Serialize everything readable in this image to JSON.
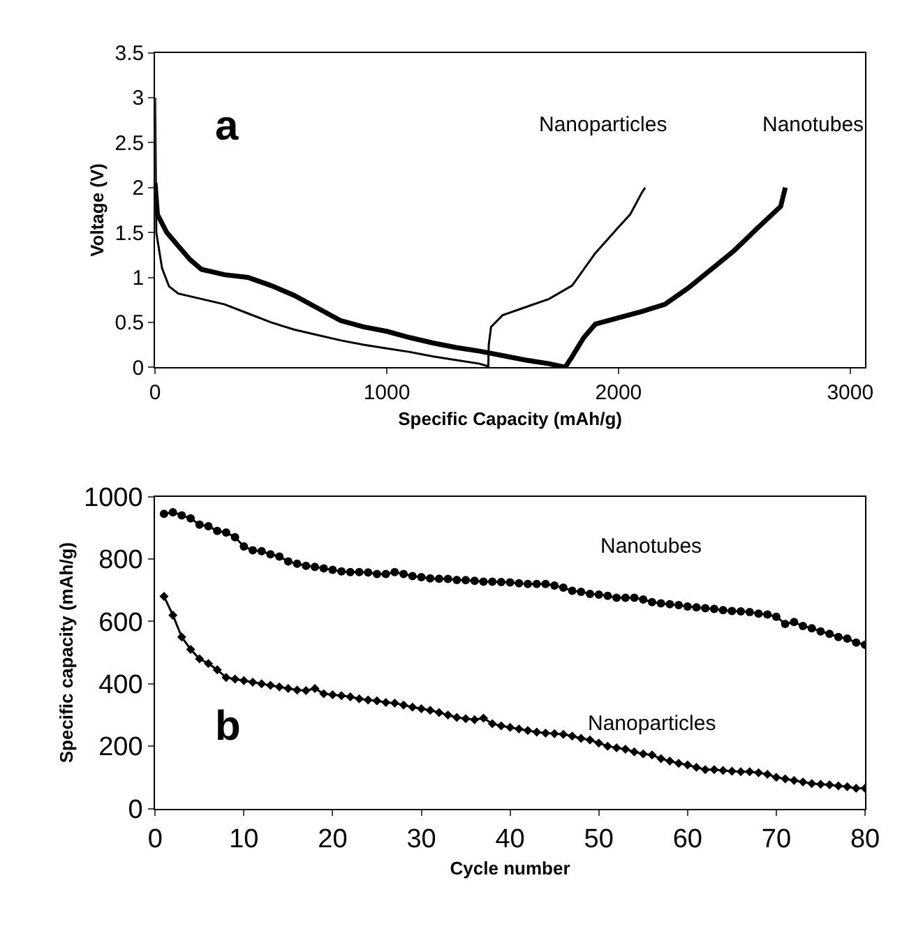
{
  "chart_data": [
    {
      "type": "line",
      "xlabel": "Specific Capacity (mAh/g)",
      "ylabel": "Voltage (V)",
      "annotations": [
        "a"
      ],
      "xlim": [
        0,
        3064
      ],
      "xticks": [
        0,
        1000,
        2000,
        3000
      ],
      "ylim": [
        0,
        3.5
      ],
      "yticks": [
        0,
        0.5,
        1,
        1.5,
        2,
        2.5,
        3,
        3.5
      ],
      "marker": "none",
      "series": [
        {
          "name": "Nanoparticles",
          "color": "#000000",
          "x": [
            0,
            5,
            30,
            60,
            100,
            200,
            300,
            400,
            500,
            600,
            700,
            800,
            900,
            1000,
            1100,
            1200,
            1300,
            1400,
            1438,
            1440,
            1450,
            1500,
            1600,
            1700,
            1800,
            1900,
            2000,
            2050,
            2100,
            2115
          ],
          "values": [
            3.0,
            1.5,
            1.1,
            0.9,
            0.82,
            0.76,
            0.7,
            0.6,
            0.5,
            0.42,
            0.36,
            0.3,
            0.25,
            0.21,
            0.17,
            0.12,
            0.08,
            0.04,
            0.01,
            0.25,
            0.45,
            0.58,
            0.67,
            0.76,
            0.91,
            1.27,
            1.56,
            1.7,
            1.94,
            2.0
          ]
        },
        {
          "name": "Nanotubes",
          "color": "#000000",
          "x": [
            0,
            10,
            50,
            100,
            150,
            200,
            300,
            400,
            500,
            600,
            700,
            800,
            900,
            1000,
            1100,
            1200,
            1300,
            1400,
            1500,
            1600,
            1700,
            1770,
            1780,
            1800,
            1850,
            1900,
            2000,
            2100,
            2200,
            2300,
            2400,
            2500,
            2600,
            2700,
            2720
          ],
          "values": [
            2.05,
            1.7,
            1.5,
            1.35,
            1.2,
            1.09,
            1.03,
            1.0,
            0.91,
            0.8,
            0.66,
            0.52,
            0.45,
            0.4,
            0.33,
            0.27,
            0.22,
            0.18,
            0.13,
            0.08,
            0.04,
            0.0,
            0.04,
            0.12,
            0.33,
            0.48,
            0.55,
            0.62,
            0.7,
            0.88,
            1.09,
            1.3,
            1.55,
            1.79,
            2.0
          ]
        }
      ]
    },
    {
      "type": "line",
      "xlabel": "Cycle number",
      "ylabel": "Specific capacity (mAh/g)",
      "annotations": [
        "b"
      ],
      "xlim": [
        0,
        80
      ],
      "xticks": [
        0,
        10,
        20,
        30,
        40,
        50,
        60,
        70,
        80
      ],
      "ylim": [
        0,
        1000
      ],
      "yticks": [
        0,
        200,
        400,
        600,
        800,
        1000
      ],
      "x": [
        1,
        2,
        3,
        4,
        5,
        6,
        7,
        8,
        9,
        10,
        11,
        12,
        13,
        14,
        15,
        16,
        17,
        18,
        19,
        20,
        21,
        22,
        23,
        24,
        25,
        26,
        27,
        28,
        29,
        30,
        31,
        32,
        33,
        34,
        35,
        36,
        37,
        38,
        39,
        40,
        41,
        42,
        43,
        44,
        45,
        46,
        47,
        48,
        49,
        50,
        51,
        52,
        53,
        54,
        55,
        56,
        57,
        58,
        59,
        60,
        61,
        62,
        63,
        64,
        65,
        66,
        67,
        68,
        69,
        70,
        71,
        72,
        73,
        74,
        75,
        76,
        77,
        78,
        79,
        80
      ],
      "series": [
        {
          "name": "Nanotubes",
          "color": "#000000",
          "marker": "circle",
          "values": [
            945,
            950,
            940,
            930,
            910,
            905,
            890,
            885,
            870,
            840,
            828,
            825,
            815,
            808,
            792,
            785,
            778,
            775,
            770,
            765,
            760,
            758,
            758,
            757,
            752,
            752,
            758,
            752,
            745,
            742,
            738,
            737,
            736,
            733,
            732,
            730,
            727,
            727,
            726,
            725,
            722,
            720,
            720,
            720,
            715,
            708,
            698,
            695,
            688,
            686,
            682,
            676,
            676,
            676,
            670,
            662,
            658,
            655,
            652,
            648,
            645,
            642,
            640,
            636,
            633,
            632,
            630,
            625,
            622,
            615,
            592,
            598,
            585,
            578,
            568,
            560,
            550,
            545,
            532,
            525
          ]
        },
        {
          "name": "Nanoparticles",
          "color": "#000000",
          "marker": "diamond",
          "values": [
            680,
            620,
            550,
            510,
            480,
            465,
            445,
            420,
            415,
            410,
            405,
            400,
            395,
            390,
            385,
            380,
            378,
            385,
            368,
            365,
            362,
            358,
            352,
            348,
            345,
            340,
            338,
            332,
            325,
            320,
            315,
            308,
            300,
            292,
            288,
            285,
            290,
            272,
            265,
            260,
            255,
            250,
            245,
            242,
            240,
            238,
            232,
            225,
            220,
            210,
            200,
            195,
            190,
            182,
            175,
            172,
            160,
            152,
            145,
            140,
            132,
            125,
            125,
            122,
            120,
            118,
            118,
            115,
            110,
            100,
            95,
            90,
            85,
            80,
            78,
            76,
            73,
            70,
            65,
            65
          ]
        }
      ]
    }
  ]
}
